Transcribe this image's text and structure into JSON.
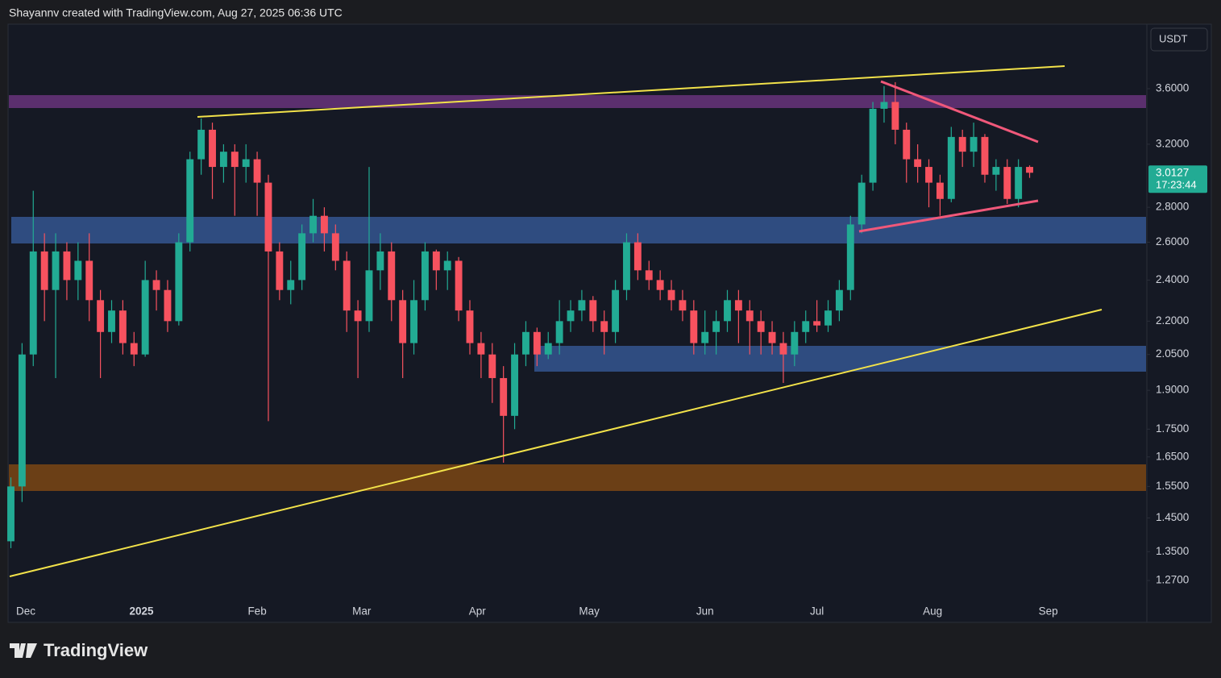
{
  "header": {
    "text": "Shayannv created with TradingView.com, Aug 27, 2025 06:36 UTC"
  },
  "footer": {
    "brand": "TradingView"
  },
  "chart_data": {
    "type": "candlestick",
    "currency": "USDT",
    "log_scale": true,
    "up_color": "#22ab94",
    "down_color": "#f7525f",
    "last_value": 3.0127,
    "countdown": "17:23:44",
    "ylim": [
      1.217,
      4.127
    ],
    "yticks": [
      {
        "value": 3.6,
        "label": "3.6000"
      },
      {
        "value": 3.2,
        "label": "3.2000"
      },
      {
        "value": 2.8,
        "label": "2.8000"
      },
      {
        "value": 2.6,
        "label": "2.6000"
      },
      {
        "value": 2.4,
        "label": "2.4000"
      },
      {
        "value": 2.2,
        "label": "2.2000"
      },
      {
        "value": 2.05,
        "label": "2.0500"
      },
      {
        "value": 1.9,
        "label": "1.9000"
      },
      {
        "value": 1.75,
        "label": "1.7500"
      },
      {
        "value": 1.65,
        "label": "1.6500"
      },
      {
        "value": 1.55,
        "label": "1.5500"
      },
      {
        "value": 1.45,
        "label": "1.4500"
      },
      {
        "value": 1.35,
        "label": "1.3500"
      },
      {
        "value": 1.27,
        "label": "1.2700"
      }
    ],
    "xlim": [
      -0.107,
      101.4
    ],
    "xticks": [
      {
        "value": 1.333,
        "label": "Dec"
      },
      {
        "value": 11.667,
        "label": "2025"
      },
      {
        "value": 22,
        "label": "Feb"
      },
      {
        "value": 31.333,
        "label": "Mar"
      },
      {
        "value": 41.667,
        "label": "Apr"
      },
      {
        "value": 51.667,
        "label": "May"
      },
      {
        "value": 62,
        "label": "Jun"
      },
      {
        "value": 72,
        "label": "Jul"
      },
      {
        "value": 82.333,
        "label": "Aug"
      },
      {
        "value": 92.667,
        "label": "Sep"
      }
    ],
    "categories": [
      null,
      null,
      null,
      null,
      null,
      null,
      null,
      null,
      null,
      null,
      null,
      null,
      null,
      null,
      null,
      null,
      null,
      null,
      null,
      null,
      null,
      null,
      null,
      null,
      null,
      null,
      null,
      null,
      null,
      null,
      null,
      null,
      null,
      null,
      null,
      null,
      null,
      null,
      null,
      null,
      null,
      null,
      null,
      null,
      null,
      null,
      null,
      null,
      null,
      null,
      null,
      null,
      null,
      null,
      null,
      null,
      null,
      null,
      null,
      null,
      null,
      null,
      null,
      null,
      null,
      null,
      null,
      null,
      null,
      null,
      null,
      null,
      null,
      null,
      null,
      null,
      null,
      null,
      null,
      null,
      null,
      null,
      null,
      null,
      null,
      null,
      null,
      null,
      null,
      null,
      null,
      null
    ],
    "open": [
      1.38,
      1.55,
      2.05,
      2.55,
      2.35,
      2.55,
      2.4,
      2.5,
      2.3,
      2.15,
      2.25,
      2.1,
      2.05,
      2.4,
      2.35,
      2.2,
      2.6,
      3.1,
      3.3,
      3.05,
      3.15,
      3.05,
      3.1,
      2.95,
      2.55,
      2.35,
      2.4,
      2.65,
      2.75,
      2.65,
      2.5,
      2.25,
      2.2,
      2.45,
      2.55,
      2.3,
      2.1,
      2.3,
      2.55,
      2.45,
      2.5,
      2.25,
      2.1,
      2.05,
      1.95,
      1.8,
      2.05,
      2.15,
      2.05,
      2.1,
      2.2,
      2.25,
      2.3,
      2.2,
      2.15,
      2.35,
      2.6,
      2.45,
      2.4,
      2.35,
      2.3,
      2.25,
      2.1,
      2.15,
      2.2,
      2.3,
      2.25,
      2.2,
      2.15,
      2.1,
      2.05,
      2.15,
      2.2,
      2.18,
      2.25,
      2.35,
      2.7,
      2.95,
      3.45,
      3.5,
      3.3,
      3.1,
      3.05,
      2.95,
      2.85,
      3.25,
      3.15,
      3.25,
      3.0,
      3.05,
      2.85,
      3.05
    ],
    "high": [
      1.58,
      2.1,
      2.9,
      2.65,
      2.65,
      2.6,
      2.6,
      2.65,
      2.35,
      2.3,
      2.3,
      2.15,
      2.5,
      2.45,
      2.4,
      2.65,
      3.15,
      3.38,
      3.35,
      3.2,
      3.2,
      3.2,
      3.15,
      3.0,
      2.6,
      2.5,
      2.7,
      2.85,
      2.8,
      2.7,
      2.55,
      2.3,
      3.05,
      2.65,
      2.6,
      2.35,
      2.4,
      2.6,
      2.56,
      2.55,
      2.52,
      2.3,
      2.15,
      2.1,
      2.0,
      2.1,
      2.2,
      2.17,
      2.15,
      2.3,
      2.3,
      2.35,
      2.32,
      2.25,
      2.4,
      2.65,
      2.65,
      2.5,
      2.45,
      2.4,
      2.35,
      2.3,
      2.25,
      2.25,
      2.35,
      2.35,
      2.3,
      2.25,
      2.2,
      2.15,
      2.2,
      2.25,
      2.3,
      2.3,
      2.4,
      2.75,
      3.0,
      3.5,
      3.62,
      3.65,
      3.35,
      3.2,
      3.1,
      3.0,
      3.32,
      3.3,
      3.35,
      3.27,
      3.1,
      3.1,
      3.1,
      3.06
    ],
    "low": [
      1.36,
      1.5,
      2.0,
      2.2,
      1.95,
      2.3,
      2.3,
      2.2,
      1.95,
      2.1,
      2.05,
      2.0,
      2.04,
      2.25,
      2.15,
      2.18,
      2.55,
      3.0,
      2.85,
      2.95,
      2.75,
      2.95,
      2.75,
      1.78,
      2.3,
      2.28,
      2.35,
      2.6,
      2.55,
      2.45,
      2.15,
      1.95,
      2.15,
      2.35,
      2.2,
      1.95,
      2.05,
      2.25,
      2.35,
      2.35,
      2.2,
      2.05,
      1.95,
      1.85,
      1.63,
      1.75,
      2.0,
      2.0,
      2.03,
      2.05,
      2.15,
      2.2,
      2.15,
      2.05,
      2.1,
      2.3,
      2.4,
      2.35,
      2.3,
      2.25,
      2.2,
      2.05,
      2.05,
      2.05,
      2.15,
      2.1,
      2.05,
      2.05,
      2.05,
      1.93,
      2.0,
      2.1,
      2.15,
      2.15,
      2.2,
      2.3,
      2.65,
      2.9,
      3.35,
      3.2,
      2.95,
      2.95,
      2.8,
      2.75,
      2.83,
      3.05,
      3.05,
      2.95,
      2.9,
      2.82,
      2.8,
      2.98
    ],
    "close": [
      1.55,
      2.05,
      2.55,
      2.35,
      2.55,
      2.4,
      2.5,
      2.3,
      2.15,
      2.25,
      2.1,
      2.05,
      2.4,
      2.35,
      2.2,
      2.6,
      3.1,
      3.3,
      3.05,
      3.15,
      3.05,
      3.1,
      2.95,
      2.55,
      2.35,
      2.4,
      2.65,
      2.75,
      2.65,
      2.5,
      2.25,
      2.2,
      2.45,
      2.55,
      2.3,
      2.1,
      2.3,
      2.55,
      2.45,
      2.5,
      2.25,
      2.1,
      2.05,
      1.95,
      1.8,
      2.05,
      2.15,
      2.05,
      2.1,
      2.2,
      2.25,
      2.3,
      2.2,
      2.15,
      2.35,
      2.6,
      2.45,
      2.4,
      2.35,
      2.3,
      2.25,
      2.1,
      2.15,
      2.2,
      2.3,
      2.25,
      2.2,
      2.15,
      2.1,
      2.05,
      2.15,
      2.2,
      2.18,
      2.25,
      2.35,
      2.7,
      2.95,
      3.45,
      3.5,
      3.3,
      3.1,
      3.05,
      2.95,
      2.85,
      3.25,
      3.15,
      3.25,
      3.0,
      3.05,
      2.85,
      3.05,
      3.0127
    ]
  }
}
